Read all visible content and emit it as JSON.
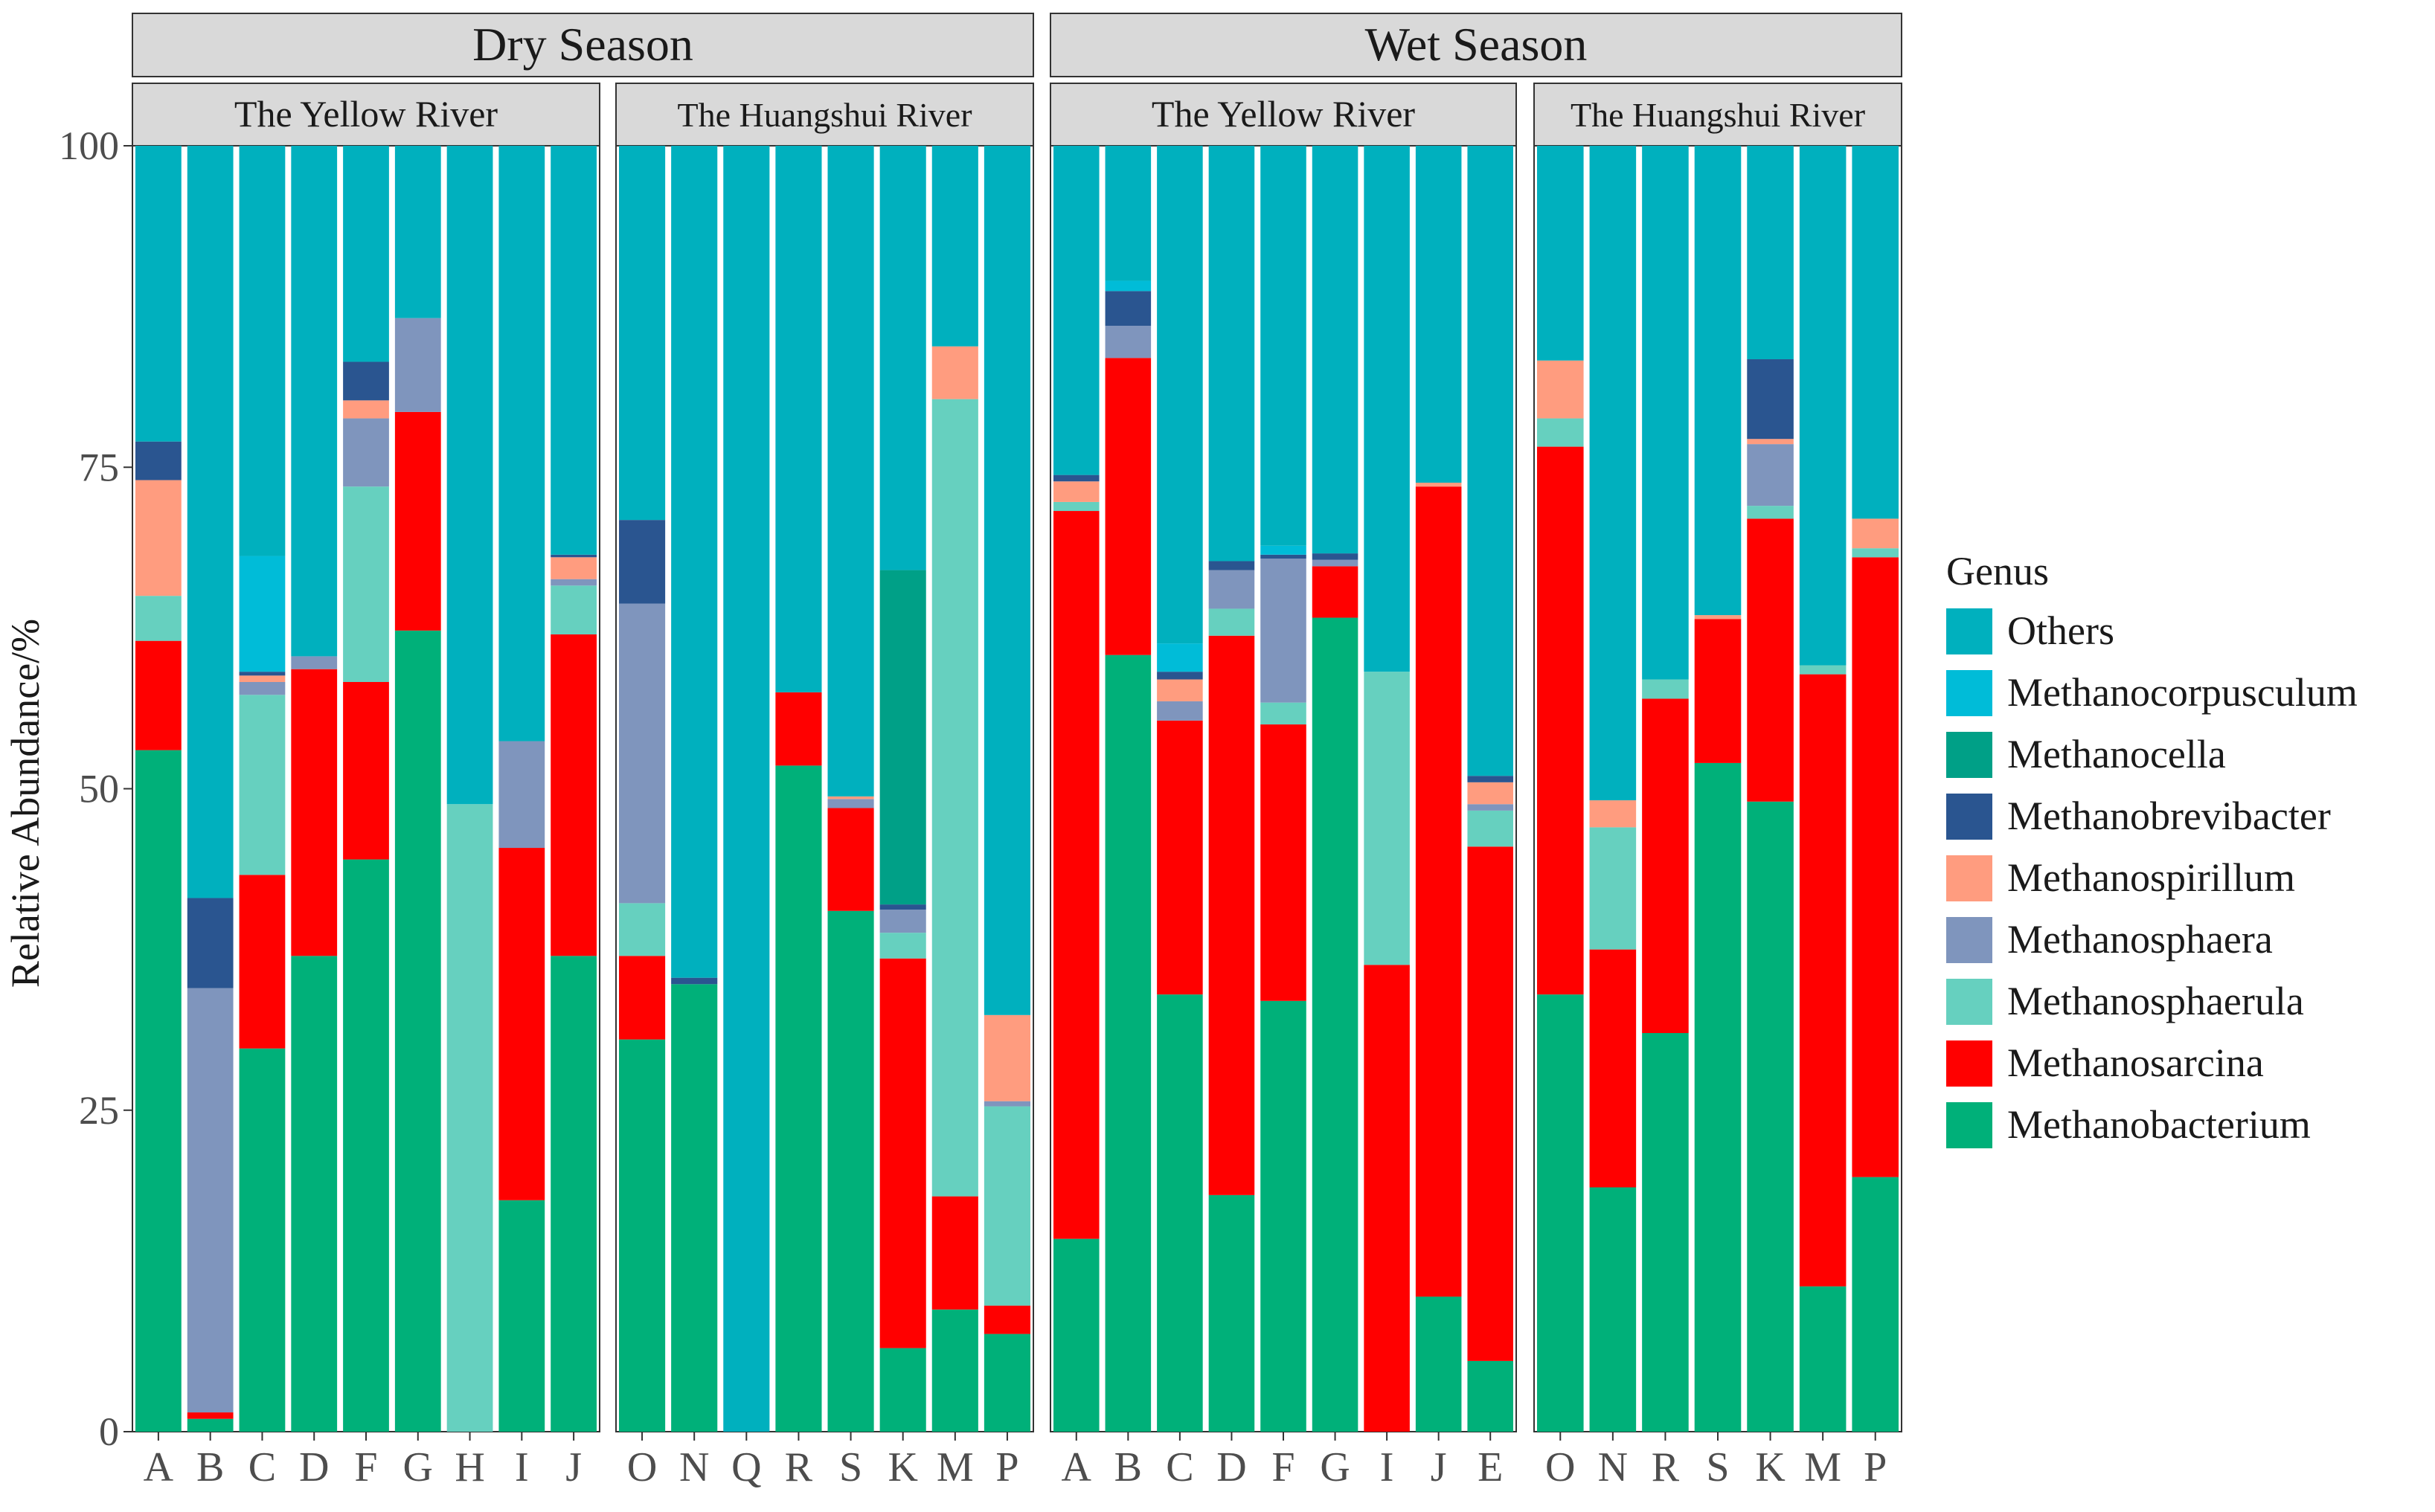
{
  "chart_data": {
    "type": "bar",
    "stacked": true,
    "ylabel": "Relative Abundance/%",
    "xlabel": "",
    "ylim": [
      0,
      100
    ],
    "yticks": [
      0,
      25,
      50,
      75,
      100
    ],
    "legend": {
      "title": "Genus",
      "position": "right",
      "entries": [
        "Others",
        "Methanocorpusculum",
        "Methanocella",
        "Methanobrevibacter",
        "Methanospirillum",
        "Methanosphaera",
        "Methanosphaerula",
        "Methanosarcina",
        "Methanobacterium"
      ]
    },
    "colors": {
      "Others": "#00B0BE",
      "Methanocorpusculum": "#00BCD8",
      "Methanocella": "#00A087",
      "Methanobrevibacter": "#2A5590",
      "Methanospirillum": "#FF9C7F",
      "Methanosphaera": "#7F95BD",
      "Methanosphaerula": "#66D0BF",
      "Methanosarcina": "#FF0000",
      "Methanobacterium": "#00B079"
    },
    "stack_order": [
      "Methanobacterium",
      "Methanosarcina",
      "Methanosphaerula",
      "Methanosphaera",
      "Methanospirillum",
      "Methanobrevibacter",
      "Methanocella",
      "Methanocorpusculum",
      "Others"
    ],
    "seasons": [
      {
        "name": "Dry Season",
        "panels": [
          {
            "name": "The Yellow River",
            "bars": [
              {
                "label": "A",
                "values": {
                  "Methanobacterium": 53,
                  "Methanosarcina": 8.5,
                  "Methanosphaerula": 3.5,
                  "Methanosphaera": 0,
                  "Methanospirillum": 9,
                  "Methanobrevibacter": 3,
                  "Methanocella": 0,
                  "Methanocorpusculum": 0,
                  "Others": 23
                }
              },
              {
                "label": "B",
                "values": {
                  "Methanobacterium": 1,
                  "Methanosarcina": 0.5,
                  "Methanosphaerula": 0,
                  "Methanosphaera": 33,
                  "Methanospirillum": 0,
                  "Methanobrevibacter": 7,
                  "Methanocella": 0,
                  "Methanocorpusculum": 0,
                  "Others": 58.5
                }
              },
              {
                "label": "C",
                "values": {
                  "Methanobacterium": 29.8,
                  "Methanosarcina": 13.5,
                  "Methanosphaerula": 14,
                  "Methanosphaera": 1,
                  "Methanospirillum": 0.5,
                  "Methanobrevibacter": 0.3,
                  "Methanocella": 0,
                  "Methanocorpusculum": 9,
                  "Others": 31.9
                }
              },
              {
                "label": "D",
                "values": {
                  "Methanobacterium": 37,
                  "Methanosarcina": 22.3,
                  "Methanosphaerula": 0,
                  "Methanosphaera": 1,
                  "Methanospirillum": 0,
                  "Methanobrevibacter": 0,
                  "Methanocella": 0,
                  "Methanocorpusculum": 0,
                  "Others": 39.7
                }
              },
              {
                "label": "F",
                "values": {
                  "Methanobacterium": 44.5,
                  "Methanosarcina": 13.8,
                  "Methanosphaerula": 15.2,
                  "Methanosphaera": 5.3,
                  "Methanospirillum": 1.4,
                  "Methanobrevibacter": 3,
                  "Methanocella": 0,
                  "Methanocorpusculum": 0,
                  "Others": 16.8
                }
              },
              {
                "label": "G",
                "values": {
                  "Methanobacterium": 62.3,
                  "Methanosarcina": 17,
                  "Methanosphaerula": 0,
                  "Methanosphaera": 7.3,
                  "Methanospirillum": 0,
                  "Methanobrevibacter": 0,
                  "Methanocella": 0,
                  "Methanocorpusculum": 0,
                  "Others": 13.4
                }
              },
              {
                "label": "H",
                "values": {
                  "Methanobacterium": 0,
                  "Methanosarcina": 0,
                  "Methanosphaerula": 48.8,
                  "Methanosphaera": 0,
                  "Methanospirillum": 0,
                  "Methanobrevibacter": 0,
                  "Methanocella": 0,
                  "Methanocorpusculum": 0,
                  "Others": 51.2
                }
              },
              {
                "label": "I",
                "values": {
                  "Methanobacterium": 18,
                  "Methanosarcina": 27.4,
                  "Methanosphaerula": 0,
                  "Methanosphaera": 8.3,
                  "Methanospirillum": 0,
                  "Methanobrevibacter": 0,
                  "Methanocella": 0,
                  "Methanocorpusculum": 0,
                  "Others": 46.3
                }
              },
              {
                "label": "J",
                "values": {
                  "Methanobacterium": 37,
                  "Methanosarcina": 25,
                  "Methanosphaerula": 3.8,
                  "Methanosphaera": 0.5,
                  "Methanospirillum": 1.7,
                  "Methanobrevibacter": 0.2,
                  "Methanocella": 0,
                  "Methanocorpusculum": 0,
                  "Others": 31.8
                }
              }
            ]
          },
          {
            "name": "The Huangshui River",
            "bars": [
              {
                "label": "O",
                "values": {
                  "Methanobacterium": 30.5,
                  "Methanosarcina": 6.5,
                  "Methanosphaerula": 4.1,
                  "Methanosphaera": 23.3,
                  "Methanospirillum": 0,
                  "Methanobrevibacter": 6.5,
                  "Methanocella": 0,
                  "Methanocorpusculum": 0,
                  "Others": 29.1
                }
              },
              {
                "label": "N",
                "values": {
                  "Methanobacterium": 34.8,
                  "Methanosarcina": 0,
                  "Methanosphaerula": 0,
                  "Methanosphaera": 0,
                  "Methanospirillum": 0,
                  "Methanobrevibacter": 0.5,
                  "Methanocella": 0,
                  "Methanocorpusculum": 0,
                  "Others": 64.7
                }
              },
              {
                "label": "Q",
                "values": {
                  "Methanobacterium": 0,
                  "Methanosarcina": 0,
                  "Methanosphaerula": 0,
                  "Methanosphaera": 0,
                  "Methanospirillum": 0,
                  "Methanobrevibacter": 0,
                  "Methanocella": 0,
                  "Methanocorpusculum": 0,
                  "Others": 100
                }
              },
              {
                "label": "R",
                "values": {
                  "Methanobacterium": 51.8,
                  "Methanosarcina": 5.7,
                  "Methanosphaerula": 0,
                  "Methanosphaera": 0,
                  "Methanospirillum": 0,
                  "Methanobrevibacter": 0,
                  "Methanocella": 0,
                  "Methanocorpusculum": 0,
                  "Others": 42.5
                }
              },
              {
                "label": "S",
                "values": {
                  "Methanobacterium": 40.5,
                  "Methanosarcina": 8,
                  "Methanosphaerula": 0,
                  "Methanosphaera": 0.7,
                  "Methanospirillum": 0.2,
                  "Methanobrevibacter": 0,
                  "Methanocella": 0,
                  "Methanocorpusculum": 0,
                  "Others": 50.6
                }
              },
              {
                "label": "K",
                "values": {
                  "Methanobacterium": 6.5,
                  "Methanosarcina": 30.3,
                  "Methanosphaerula": 2,
                  "Methanosphaera": 1.8,
                  "Methanospirillum": 0,
                  "Methanobrevibacter": 0.4,
                  "Methanocella": 26,
                  "Methanocorpusculum": 0,
                  "Others": 33
                }
              },
              {
                "label": "M",
                "values": {
                  "Methanobacterium": 9.5,
                  "Methanosarcina": 8.8,
                  "Methanosphaerula": 62,
                  "Methanosphaera": 0,
                  "Methanospirillum": 4.1,
                  "Methanobrevibacter": 0,
                  "Methanocella": 0,
                  "Methanocorpusculum": 0,
                  "Others": 15.6
                }
              },
              {
                "label": "P",
                "values": {
                  "Methanobacterium": 7.6,
                  "Methanosarcina": 2.2,
                  "Methanosphaerula": 15.5,
                  "Methanosphaera": 0.4,
                  "Methanospirillum": 6.7,
                  "Methanobrevibacter": 0,
                  "Methanocella": 0,
                  "Methanocorpusculum": 0,
                  "Others": 67.6
                }
              }
            ]
          }
        ]
      },
      {
        "name": "Wet Season",
        "panels": [
          {
            "name": "The Yellow River",
            "bars": [
              {
                "label": "A",
                "values": {
                  "Methanobacterium": 15,
                  "Methanosarcina": 56.6,
                  "Methanosphaerula": 0.7,
                  "Methanosphaera": 0,
                  "Methanospirillum": 1.6,
                  "Methanobrevibacter": 0.5,
                  "Methanocella": 0,
                  "Methanocorpusculum": 0,
                  "Others": 25.6
                }
              },
              {
                "label": "B",
                "values": {
                  "Methanobacterium": 60.4,
                  "Methanosarcina": 23.1,
                  "Methanosphaerula": 0,
                  "Methanosphaera": 2.5,
                  "Methanospirillum": 0,
                  "Methanobrevibacter": 2.7,
                  "Methanocella": 0,
                  "Methanocorpusculum": 0.8,
                  "Others": 10.5
                }
              },
              {
                "label": "C",
                "values": {
                  "Methanobacterium": 34,
                  "Methanosarcina": 21.3,
                  "Methanosphaerula": 0,
                  "Methanosphaera": 1.5,
                  "Methanospirillum": 1.7,
                  "Methanobrevibacter": 0.6,
                  "Methanocella": 0,
                  "Methanocorpusculum": 2.2,
                  "Others": 38.7
                }
              },
              {
                "label": "D",
                "values": {
                  "Methanobacterium": 18.4,
                  "Methanosarcina": 43.5,
                  "Methanosphaerula": 2.1,
                  "Methanosphaera": 3,
                  "Methanospirillum": 0,
                  "Methanobrevibacter": 0.7,
                  "Methanocella": 0,
                  "Methanocorpusculum": 0,
                  "Others": 32.3
                }
              },
              {
                "label": "F",
                "values": {
                  "Methanobacterium": 33.5,
                  "Methanosarcina": 21.5,
                  "Methanosphaerula": 1.7,
                  "Methanosphaera": 11.2,
                  "Methanospirillum": 0,
                  "Methanobrevibacter": 0.3,
                  "Methanocella": 0,
                  "Methanocorpusculum": 0.7,
                  "Others": 31.1
                }
              },
              {
                "label": "G",
                "values": {
                  "Methanobacterium": 63.3,
                  "Methanosarcina": 4,
                  "Methanosphaerula": 0,
                  "Methanosphaera": 0.5,
                  "Methanospirillum": 0,
                  "Methanobrevibacter": 0.5,
                  "Methanocella": 0,
                  "Methanocorpusculum": 0,
                  "Others": 31.7
                }
              },
              {
                "label": "I",
                "values": {
                  "Methanobacterium": 0,
                  "Methanosarcina": 36.3,
                  "Methanosphaerula": 22.8,
                  "Methanosphaera": 0,
                  "Methanospirillum": 0,
                  "Methanobrevibacter": 0,
                  "Methanocella": 0,
                  "Methanocorpusculum": 0,
                  "Others": 40.9
                }
              },
              {
                "label": "J",
                "values": {
                  "Methanobacterium": 10.5,
                  "Methanosarcina": 63,
                  "Methanosphaerula": 0,
                  "Methanosphaera": 0,
                  "Methanospirillum": 0.3,
                  "Methanobrevibacter": 0,
                  "Methanocella": 0,
                  "Methanocorpusculum": 0,
                  "Others": 26.2
                }
              },
              {
                "label": "E",
                "values": {
                  "Methanobacterium": 5.5,
                  "Methanosarcina": 40,
                  "Methanosphaerula": 2.8,
                  "Methanosphaera": 0.5,
                  "Methanospirillum": 1.7,
                  "Methanobrevibacter": 0.5,
                  "Methanocella": 0,
                  "Methanocorpusculum": 0,
                  "Others": 49
                }
              }
            ]
          },
          {
            "name": "The Huangshui River",
            "bars": [
              {
                "label": "O",
                "values": {
                  "Methanobacterium": 34,
                  "Methanosarcina": 42.6,
                  "Methanosphaerula": 2.2,
                  "Methanosphaera": 0,
                  "Methanospirillum": 4.5,
                  "Methanobrevibacter": 0,
                  "Methanocella": 0,
                  "Methanocorpusculum": 0,
                  "Others": 16.7
                }
              },
              {
                "label": "N",
                "values": {
                  "Methanobacterium": 19,
                  "Methanosarcina": 18.5,
                  "Methanosphaerula": 9.5,
                  "Methanosphaera": 0,
                  "Methanospirillum": 2.1,
                  "Methanobrevibacter": 0,
                  "Methanocella": 0,
                  "Methanocorpusculum": 0,
                  "Others": 50.9
                }
              },
              {
                "label": "R",
                "values": {
                  "Methanobacterium": 31,
                  "Methanosarcina": 26,
                  "Methanosphaerula": 1.5,
                  "Methanosphaera": 0,
                  "Methanospirillum": 0,
                  "Methanobrevibacter": 0,
                  "Methanocella": 0,
                  "Methanocorpusculum": 0,
                  "Others": 41.5
                }
              },
              {
                "label": "S",
                "values": {
                  "Methanobacterium": 52,
                  "Methanosarcina": 11.2,
                  "Methanosphaerula": 0,
                  "Methanosphaera": 0,
                  "Methanospirillum": 0.3,
                  "Methanobrevibacter": 0,
                  "Methanocella": 0,
                  "Methanocorpusculum": 0,
                  "Others": 36.5
                }
              },
              {
                "label": "K",
                "values": {
                  "Methanobacterium": 49,
                  "Methanosarcina": 22,
                  "Methanosphaerula": 1,
                  "Methanosphaera": 4.8,
                  "Methanospirillum": 0.4,
                  "Methanobrevibacter": 6.2,
                  "Methanocella": 0,
                  "Methanocorpusculum": 0,
                  "Others": 16.6
                }
              },
              {
                "label": "M",
                "values": {
                  "Methanobacterium": 11.3,
                  "Methanosarcina": 47.6,
                  "Methanosphaerula": 0.7,
                  "Methanosphaera": 0,
                  "Methanospirillum": 0,
                  "Methanobrevibacter": 0,
                  "Methanocella": 0,
                  "Methanocorpusculum": 0,
                  "Others": 40.4
                }
              },
              {
                "label": "P",
                "values": {
                  "Methanobacterium": 19.8,
                  "Methanosarcina": 48.2,
                  "Methanosphaerula": 0.7,
                  "Methanosphaera": 0,
                  "Methanospirillum": 2.3,
                  "Methanobrevibacter": 0,
                  "Methanocella": 0,
                  "Methanocorpusculum": 0,
                  "Others": 29
                }
              }
            ]
          }
        ]
      }
    ]
  }
}
